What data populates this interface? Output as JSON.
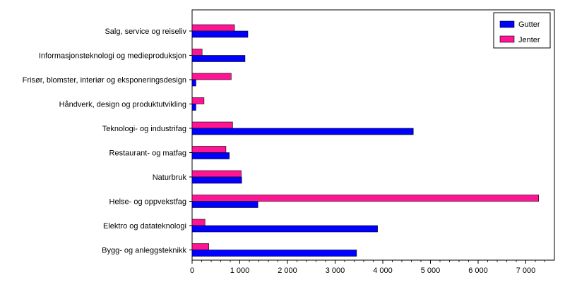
{
  "chart_data": {
    "type": "bar",
    "orientation": "horizontal",
    "categories": [
      "Salg, service og reiseliv",
      "Informasjonsteknologi og medieproduksjon",
      "Frisør, blomster, interiør og eksponeringsdesign",
      "Håndverk, design og produktutvikling",
      "Teknologi- og industrifag",
      "Restaurant- og matfag",
      "Naturbruk",
      "Helse- og oppvekstfag",
      "Elektro og datateknologi",
      "Bygg- og anleggsteknikk"
    ],
    "series": [
      {
        "name": "Gutter",
        "color": "#0000ff",
        "values": [
          1170,
          1110,
          80,
          80,
          4640,
          780,
          1040,
          1380,
          3890,
          3450
        ]
      },
      {
        "name": "Jenter",
        "color": "#ff1493",
        "values": [
          890,
          210,
          820,
          250,
          850,
          710,
          1030,
          7270,
          270,
          350
        ]
      }
    ],
    "xlim": [
      0,
      7600
    ],
    "xticks": [
      0,
      1000,
      2000,
      3000,
      4000,
      5000,
      6000,
      7000
    ],
    "xtick_labels": [
      "0",
      "1 000",
      "2 000",
      "3 000",
      "4 000",
      "5 000",
      "6 000",
      "7 000"
    ],
    "legend": {
      "position": "top-right"
    },
    "grid": false
  }
}
